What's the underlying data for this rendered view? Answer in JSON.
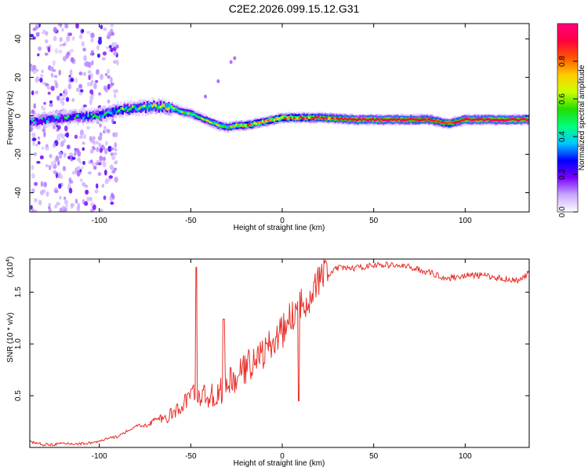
{
  "title": "C2E2.2026.099.15.12.G31",
  "chart_data": [
    {
      "type": "heatmap",
      "panel": "spectrogram",
      "xlabel": "Height of straight line (km)",
      "ylabel": "Frequency (Hz)",
      "xlim": [
        -138,
        135
      ],
      "ylim": [
        -50,
        48
      ],
      "xticks": [
        -100,
        -50,
        0,
        50,
        100
      ],
      "xtick_labels": [
        "-100",
        "-50",
        "0",
        "50",
        "100"
      ],
      "yticks": [
        -40,
        -20,
        0,
        20,
        40
      ],
      "ytick_labels": [
        "-40",
        "-20",
        "0",
        "20",
        "40"
      ],
      "ridge": {
        "description": "Frequency of spectral peak vs height",
        "x": [
          -138,
          -120,
          -100,
          -90,
          -80,
          -70,
          -60,
          -55,
          -50,
          -45,
          -40,
          -35,
          -30,
          -25,
          -20,
          -10,
          0,
          10,
          20,
          40,
          60,
          80,
          90,
          100,
          120,
          135
        ],
        "y": [
          -3,
          -1,
          0,
          3,
          4,
          5,
          4,
          2,
          1,
          -1,
          -3,
          -5,
          -6,
          -5,
          -5,
          -3,
          -1,
          -1,
          -1,
          -2,
          -2,
          -2,
          -4,
          -2,
          -2,
          -2
        ],
        "amplitude": [
          0.3,
          0.35,
          0.4,
          0.45,
          0.5,
          0.55,
          0.6,
          0.55,
          0.6,
          0.5,
          0.55,
          0.6,
          0.55,
          0.65,
          0.75,
          0.7,
          0.75,
          0.8,
          0.85,
          0.95,
          0.95,
          0.9,
          0.85,
          0.95,
          0.95,
          0.95
        ]
      },
      "scatter_region": {
        "x_from": -138,
        "x_to": -90,
        "note": "faint noise blobs"
      },
      "colorbar": {
        "label": "Normalized spectral amplitude",
        "range": [
          0.0,
          1.0
        ],
        "ticks": [
          0.0,
          0.2,
          0.4,
          0.6,
          0.8
        ],
        "tick_labels": [
          "0.0",
          "0.2",
          "0.4",
          "0.6",
          "0.8"
        ],
        "colors": [
          "#ffffff",
          "#c7a8ff",
          "#7a00ff",
          "#0000ff",
          "#00c8ff",
          "#00ff80",
          "#22dd00",
          "#ccff00",
          "#ffcc00",
          "#ff5500",
          "#ff0040",
          "#ff0080"
        ]
      }
    },
    {
      "type": "line",
      "panel": "snr",
      "xlabel": "Height of straight line (km)",
      "ylabel": "SNR (10 * v/v)",
      "yscale_label": "(x10",
      "yscale_exponent": "4",
      "yscale_close": ")",
      "xlim": [
        -138,
        135
      ],
      "ylim": [
        0,
        1.82
      ],
      "xticks": [
        -100,
        -50,
        0,
        50,
        100
      ],
      "xtick_labels": [
        "-100",
        "-50",
        "0",
        "50",
        "100"
      ],
      "yticks": [
        0.5,
        1.0,
        1.5
      ],
      "ytick_labels": [
        "0.5",
        "1.0",
        "1.5"
      ],
      "series": [
        {
          "name": "SNR",
          "color": "#e8312b",
          "x": [
            -138,
            -130,
            -120,
            -110,
            -100,
            -95,
            -90,
            -85,
            -80,
            -75,
            -70,
            -65,
            -60,
            -55,
            -50,
            -45,
            -40,
            -35,
            -30,
            -25,
            -20,
            -15,
            -10,
            -5,
            0,
            5,
            10,
            15,
            20,
            25,
            30,
            40,
            50,
            60,
            70,
            80,
            90,
            100,
            110,
            120,
            130,
            135
          ],
          "y": [
            0.05,
            0.02,
            0.03,
            0.03,
            0.05,
            0.08,
            0.1,
            0.15,
            0.2,
            0.2,
            0.25,
            0.25,
            0.3,
            0.35,
            0.5,
            0.45,
            0.45,
            0.45,
            0.55,
            0.6,
            0.7,
            0.8,
            0.85,
            0.95,
            1.05,
            1.2,
            1.3,
            1.4,
            1.55,
            1.65,
            1.72,
            1.72,
            1.75,
            1.75,
            1.73,
            1.68,
            1.62,
            1.65,
            1.65,
            1.62,
            1.6,
            1.68
          ]
        }
      ],
      "annotations": [
        {
          "x": -47,
          "y": 1.74,
          "note": "spike"
        },
        {
          "x": -32,
          "y": 1.24,
          "note": "spike"
        },
        {
          "x": 9,
          "y": 0.45,
          "note": "dip"
        }
      ]
    }
  ]
}
